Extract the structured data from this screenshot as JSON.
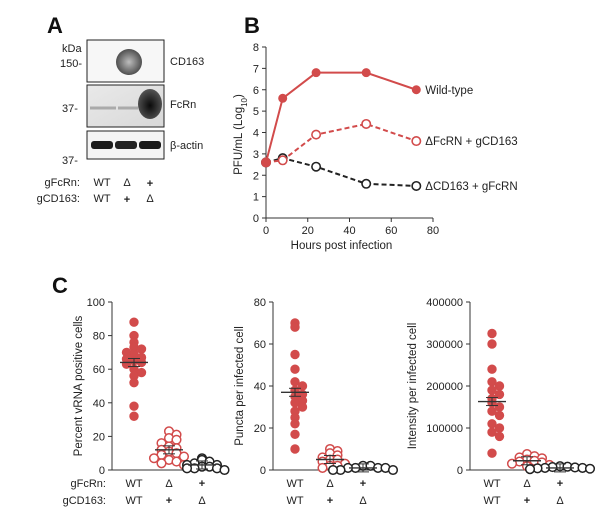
{
  "panels": {
    "a": {
      "label": "A",
      "kda_label": "kDa",
      "markers": [
        "150-",
        "37-",
        "37-"
      ],
      "bands": [
        "CD163",
        "FcRn",
        "β-actin"
      ],
      "row1_label": "gFcRn:",
      "row2_label": "gCD163:",
      "row1_values": [
        "WT",
        "Δ",
        "+"
      ],
      "row2_values": [
        "WT",
        "+",
        "Δ"
      ]
    },
    "b": {
      "label": "B"
    },
    "c": {
      "label": "C",
      "row1_label": "gFcRn:",
      "row2_label": "gCD163:"
    }
  },
  "chart_data": [
    {
      "type": "line",
      "panel": "B",
      "xlabel": "Hours post infection",
      "ylabel": "PFU/mL (Log10)",
      "xlim": [
        0,
        80
      ],
      "ylim": [
        0,
        8
      ],
      "xticks": [
        "0",
        "20",
        "40",
        "60",
        "80"
      ],
      "yticks": [
        "0",
        "1",
        "2",
        "3",
        "4",
        "5",
        "6",
        "7",
        "8"
      ],
      "series": [
        {
          "name": "Wild-type",
          "x": [
            0,
            8,
            24,
            48,
            72
          ],
          "y": [
            2.6,
            5.6,
            6.8,
            6.8,
            6.0
          ],
          "color": "#d24b4b",
          "dashed": false,
          "filled": true
        },
        {
          "name": "ΔFcRN + gCD163",
          "x": [
            0,
            8,
            24,
            48,
            72
          ],
          "y": [
            2.6,
            2.7,
            3.9,
            4.4,
            3.6
          ],
          "color": "#d24b4b",
          "dashed": true,
          "filled": false
        },
        {
          "name": "ΔCD163 + gFcRN",
          "x": [
            0,
            8,
            24,
            48,
            72
          ],
          "y": [
            2.6,
            2.8,
            2.4,
            1.6,
            1.5
          ],
          "color": "#222222",
          "dashed": true,
          "filled": false
        }
      ]
    },
    {
      "type": "scatter",
      "panel": "C1",
      "ylabel": "Percent vRNA positive cells",
      "ylim": [
        0,
        100
      ],
      "yticks": [
        "0",
        "20",
        "40",
        "60",
        "80",
        "100"
      ],
      "categories_row1": [
        "WT",
        "Δ",
        "+"
      ],
      "categories_row2": [
        "WT",
        "+",
        "Δ"
      ],
      "groups": [
        {
          "values": [
            88,
            80,
            76,
            73,
            72,
            70,
            69,
            67,
            66,
            65,
            64,
            63,
            60,
            58,
            56,
            52,
            38,
            32
          ],
          "mean": 64,
          "color": "#d24b4b",
          "filled": true
        },
        {
          "values": [
            23,
            21,
            19,
            18,
            16,
            14,
            13,
            12,
            11,
            10,
            9,
            8,
            7,
            6,
            5,
            4,
            3
          ],
          "mean": 12,
          "color": "#d24b4b",
          "filled": false
        },
        {
          "values": [
            7,
            6,
            5,
            4,
            3,
            3,
            2,
            2,
            1,
            1,
            1,
            0
          ],
          "mean": 3,
          "color": "#222222",
          "filled": false
        }
      ]
    },
    {
      "type": "scatter",
      "panel": "C2",
      "ylabel": "Puncta per infected cell",
      "ylim": [
        0,
        80
      ],
      "yticks": [
        "0",
        "20",
        "40",
        "60",
        "80"
      ],
      "categories_row1": [
        "WT",
        "Δ",
        "+"
      ],
      "categories_row2": [
        "WT",
        "+",
        "Δ"
      ],
      "groups": [
        {
          "values": [
            70,
            68,
            55,
            48,
            42,
            40,
            38,
            36,
            35,
            33,
            32,
            30,
            28,
            25,
            22,
            17,
            10
          ],
          "mean": 37,
          "color": "#d24b4b",
          "filled": true
        },
        {
          "values": [
            10,
            9,
            8,
            7,
            6,
            5,
            5,
            4,
            3,
            2,
            2,
            1
          ],
          "mean": 5,
          "color": "#d24b4b",
          "filled": false
        },
        {
          "values": [
            2,
            2,
            1,
            1,
            1,
            1,
            0,
            0,
            0
          ],
          "mean": 1,
          "color": "#222222",
          "filled": false
        }
      ]
    },
    {
      "type": "scatter",
      "panel": "C3",
      "ylabel": "Intensity per infected cell",
      "ylim": [
        0,
        400000
      ],
      "yticks": [
        "0",
        "100000",
        "200000",
        "300000",
        "400000"
      ],
      "categories_row1": [
        "WT",
        "Δ",
        "+"
      ],
      "categories_row2": [
        "WT",
        "+",
        "Δ"
      ],
      "groups": [
        {
          "values": [
            325000,
            300000,
            240000,
            210000,
            200000,
            190000,
            180000,
            170000,
            160000,
            150000,
            140000,
            130000,
            110000,
            100000,
            90000,
            80000,
            40000
          ],
          "mean": 163000,
          "color": "#d24b4b",
          "filled": true
        },
        {
          "values": [
            38000,
            33000,
            30000,
            28000,
            25000,
            22000,
            20000,
            18000,
            15000,
            12000,
            9000
          ],
          "mean": 22000,
          "color": "#d24b4b",
          "filled": false
        },
        {
          "values": [
            9000,
            8000,
            7000,
            6000,
            5000,
            5000,
            4000,
            3000,
            2000
          ],
          "mean": 5000,
          "color": "#222222",
          "filled": false
        }
      ]
    }
  ]
}
